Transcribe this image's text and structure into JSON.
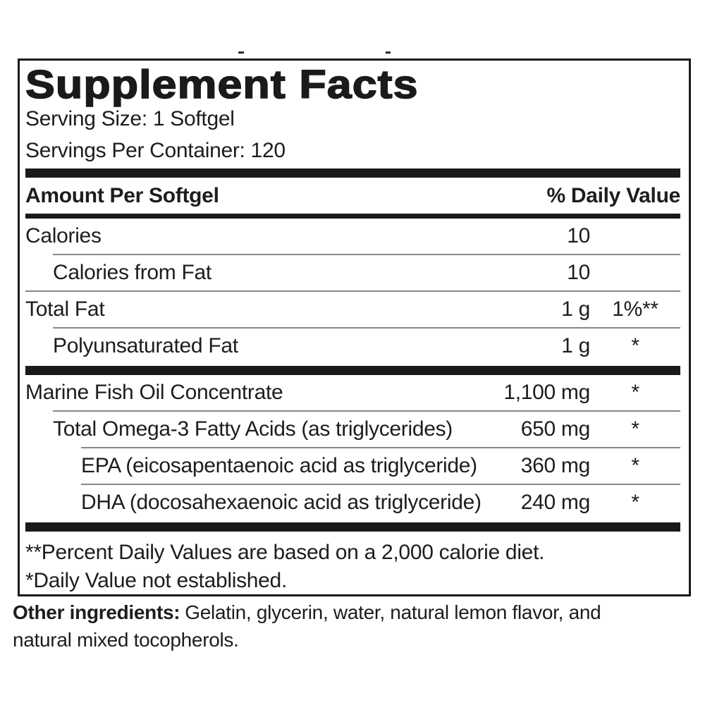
{
  "colors": {
    "text": "#1d1d1d",
    "bar": "#1a1a1a",
    "thin_rule": "#888888",
    "background": "#ffffff"
  },
  "label": {
    "title": "Supplement Facts",
    "serving_size": "Serving Size: 1 Softgel",
    "servings_per_container": "Servings Per Container: 120",
    "columns": {
      "left_header": "Amount Per Softgel",
      "right_header": "% Daily Value"
    },
    "rows": [
      {
        "type": "row",
        "label": "Calories",
        "amount": "10",
        "dv": "",
        "indent": 0,
        "sep": ""
      },
      {
        "type": "row",
        "label": "Calories from Fat",
        "amount": "10",
        "dv": "",
        "indent": 1,
        "sep": "sep-ind1"
      },
      {
        "type": "row",
        "label": "Total Fat",
        "amount": "1 g",
        "dv": "1%**",
        "indent": 0,
        "sep": "sep-full"
      },
      {
        "type": "row",
        "label": "Polyunsaturated Fat",
        "amount": "1 g",
        "dv": "*",
        "indent": 1,
        "sep": "sep-ind1"
      },
      {
        "type": "bar"
      },
      {
        "type": "row",
        "label": "Marine Fish Oil Concentrate",
        "amount": "1,100 mg",
        "dv": "*",
        "indent": 0,
        "sep": ""
      },
      {
        "type": "row",
        "label": "Total Omega-3 Fatty Acids (as triglycerides)",
        "amount": "650 mg",
        "dv": "*",
        "indent": 1,
        "sep": "sep-ind1"
      },
      {
        "type": "row",
        "label": "EPA (eicosapentaenoic acid as triglyceride)",
        "amount": "360 mg",
        "dv": "*",
        "indent": 2,
        "sep": "sep-ind2"
      },
      {
        "type": "row",
        "label": "DHA (docosahexaenoic acid as triglyceride)",
        "amount": "240 mg",
        "dv": "*",
        "indent": 2,
        "sep": "sep-ind2"
      },
      {
        "type": "bar"
      }
    ],
    "footnotes": [
      "**Percent Daily Values are based on a 2,000 calorie diet.",
      "*Daily Value not established."
    ]
  },
  "other_ingredients": {
    "label": "Other ingredients:",
    "text": "Gelatin, glycerin, water, natural lemon flavor, and natural mixed tocopherols."
  }
}
